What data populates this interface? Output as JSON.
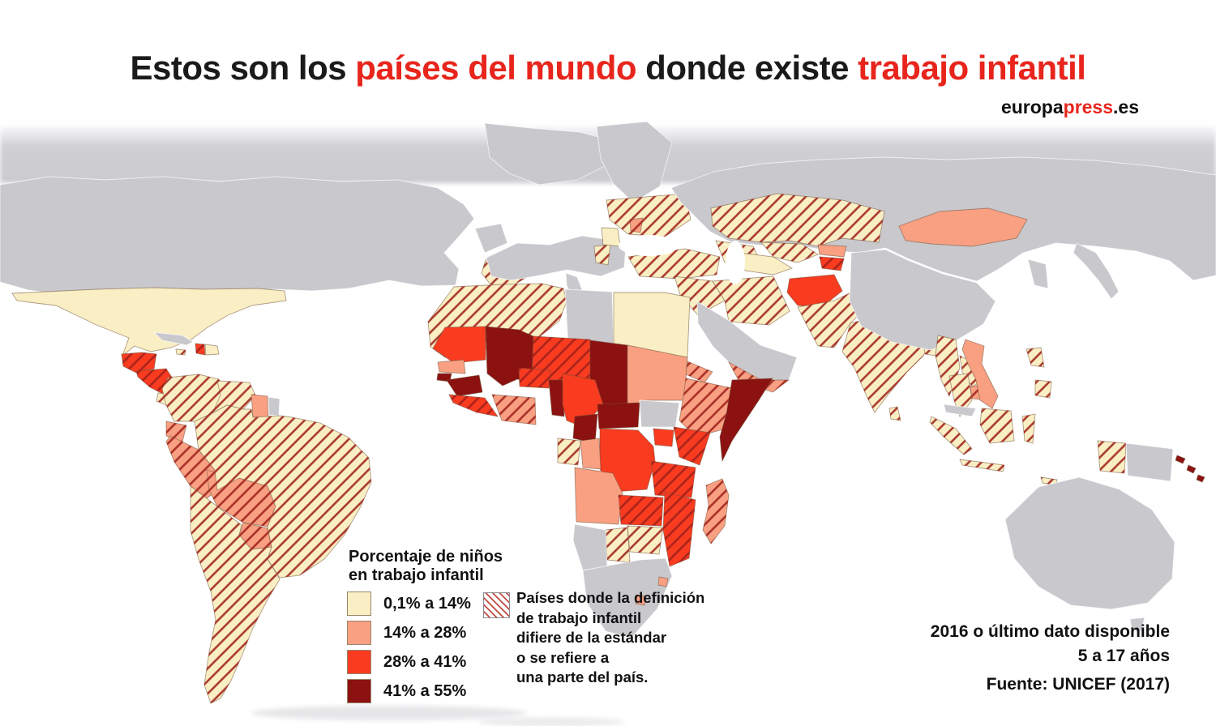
{
  "header": {
    "title_segments": [
      {
        "text": "Estos son los ",
        "color": "#1a1a1a"
      },
      {
        "text": "países del mundo",
        "color": "#e8251c"
      },
      {
        "text": " donde existe ",
        "color": "#1a1a1a"
      },
      {
        "text": "trabajo infantil",
        "color": "#e8251c"
      }
    ],
    "logo": {
      "part1": "europa",
      "part2": "press",
      "part3": ".es",
      "accent_color": "#e8251c"
    }
  },
  "legend": {
    "title": "Porcentaje de niños\nen trabajo infantil",
    "items": [
      {
        "label": "0,1% a 14%",
        "category": "c1",
        "color": "#FAEFC4"
      },
      {
        "label": "14% a 28%",
        "category": "c2",
        "color": "#F9A083"
      },
      {
        "label": "28% a 41%",
        "category": "c3",
        "color": "#F93B20"
      },
      {
        "label": "41% a 55%",
        "category": "c4",
        "color": "#8C1111"
      }
    ],
    "hatch_note": "Países donde la definición\nde trabajo infantil\ndifiere de la estándar\no se refiere a\nuna parte del país."
  },
  "footnotes": {
    "lines": "2016 o último dato disponible\n5 a 17 años",
    "source": "Fuente: UNICEF (2017)"
  },
  "map": {
    "type": "choropleth-world",
    "ocean_color": "#FFFFFF",
    "no_data_color": "#C9C8CD",
    "hatch_line_color": "#9E201A",
    "palette": {
      "c1": "#FAEFC4",
      "c2": "#F9A083",
      "c3": "#F93B20",
      "c4": "#8C1111",
      "nd": "#C9C8CD"
    },
    "regions": [
      {
        "id": "north_america",
        "name": "EE.UU. / Canadá",
        "category": "nd",
        "hatched": false
      },
      {
        "id": "greenland",
        "name": "Groenlandia",
        "category": "nd",
        "hatched": false
      },
      {
        "id": "mexico",
        "name": "México",
        "category": "c1",
        "hatched": false
      },
      {
        "id": "guatemala",
        "name": "Guatemala",
        "category": "c3",
        "hatched": true
      },
      {
        "id": "honduras_nicaragua",
        "name": "Honduras / Nicaragua",
        "category": "c3",
        "hatched": true
      },
      {
        "id": "costa_rica_panama",
        "name": "Costa Rica / Panamá",
        "category": "c1",
        "hatched": true
      },
      {
        "id": "cuba",
        "name": "Cuba",
        "category": "nd",
        "hatched": false
      },
      {
        "id": "jamaica",
        "name": "Jamaica",
        "category": "c1",
        "hatched": true
      },
      {
        "id": "haiti",
        "name": "Haití",
        "category": "c3",
        "hatched": true
      },
      {
        "id": "dominican_republic",
        "name": "Rep. Dominicana",
        "category": "c1",
        "hatched": false
      },
      {
        "id": "colombia",
        "name": "Colombia",
        "category": "c1",
        "hatched": true
      },
      {
        "id": "venezuela",
        "name": "Venezuela",
        "category": "c1",
        "hatched": true
      },
      {
        "id": "guyana",
        "name": "Guyana",
        "category": "c2",
        "hatched": false
      },
      {
        "id": "suriname",
        "name": "Surinam",
        "category": "nd",
        "hatched": false
      },
      {
        "id": "ecuador",
        "name": "Ecuador",
        "category": "c2",
        "hatched": true
      },
      {
        "id": "peru",
        "name": "Perú",
        "category": "c2",
        "hatched": true
      },
      {
        "id": "bolivia",
        "name": "Bolivia",
        "category": "c2",
        "hatched": true
      },
      {
        "id": "paraguay",
        "name": "Paraguay",
        "category": "c2",
        "hatched": true
      },
      {
        "id": "brazil",
        "name": "Brasil",
        "category": "c1",
        "hatched": true
      },
      {
        "id": "argentina_chile",
        "name": "Argentina / Chile / Uruguay",
        "category": "c1",
        "hatched": true
      },
      {
        "id": "spain_portugal",
        "name": "España / Portugal",
        "category": "c1",
        "hatched": true
      },
      {
        "id": "europe_main",
        "name": "Europa occidental",
        "category": "nd",
        "hatched": false
      },
      {
        "id": "scandinavia",
        "name": "Escandinavia",
        "category": "nd",
        "hatched": false
      },
      {
        "id": "uk",
        "name": "Reino Unido",
        "category": "nd",
        "hatched": false
      },
      {
        "id": "italy",
        "name": "Italia",
        "category": "nd",
        "hatched": false
      },
      {
        "id": "albania_macedonia",
        "name": "Albania / Macedonia",
        "category": "c1",
        "hatched": true
      },
      {
        "id": "romania",
        "name": "Rumanía",
        "category": "c1",
        "hatched": false
      },
      {
        "id": "ukraine",
        "name": "Ucrania",
        "category": "c1",
        "hatched": true
      },
      {
        "id": "moldova",
        "name": "Moldavia",
        "category": "c2",
        "hatched": true
      },
      {
        "id": "turkey",
        "name": "Turquía",
        "category": "c1",
        "hatched": true
      },
      {
        "id": "caucasus",
        "name": "Georgia / Azerbaiyán",
        "category": "c1",
        "hatched": true
      },
      {
        "id": "russia",
        "name": "Rusia",
        "category": "nd",
        "hatched": false
      },
      {
        "id": "kazakhstan",
        "name": "Kazajistán",
        "category": "c1",
        "hatched": true
      },
      {
        "id": "uzbekistan",
        "name": "Uzbekistán",
        "category": "c1",
        "hatched": true
      },
      {
        "id": "turkmenistan",
        "name": "Turkmenistán",
        "category": "c1",
        "hatched": false
      },
      {
        "id": "kyrgyzstan",
        "name": "Kirguistán",
        "category": "c2",
        "hatched": false
      },
      {
        "id": "tajikistan",
        "name": "Tayikistán",
        "category": "c3",
        "hatched": true
      },
      {
        "id": "iraq_syria",
        "name": "Irak / Siria",
        "category": "c1",
        "hatched": true
      },
      {
        "id": "iran",
        "name": "Irán",
        "category": "c1",
        "hatched": true
      },
      {
        "id": "arabia",
        "name": "Arabia Saudí",
        "category": "nd",
        "hatched": false
      },
      {
        "id": "yemen",
        "name": "Yemen",
        "category": "c2",
        "hatched": true
      },
      {
        "id": "afghanistan",
        "name": "Afganistán",
        "category": "c3",
        "hatched": false
      },
      {
        "id": "pakistan",
        "name": "Pakistán",
        "category": "c1",
        "hatched": true
      },
      {
        "id": "india",
        "name": "India",
        "category": "c1",
        "hatched": true
      },
      {
        "id": "nepal",
        "name": "Nepal",
        "category": "c3",
        "hatched": false
      },
      {
        "id": "bangladesh",
        "name": "Bangladés",
        "category": "c1",
        "hatched": true
      },
      {
        "id": "sri_lanka",
        "name": "Sri Lanka",
        "category": "c1",
        "hatched": true
      },
      {
        "id": "china",
        "name": "China",
        "category": "nd",
        "hatched": false
      },
      {
        "id": "mongolia",
        "name": "Mongolia",
        "category": "c2",
        "hatched": false
      },
      {
        "id": "korea",
        "name": "Corea",
        "category": "nd",
        "hatched": false
      },
      {
        "id": "japan",
        "name": "Japón",
        "category": "nd",
        "hatched": false
      },
      {
        "id": "myanmar",
        "name": "Myanmar",
        "category": "c1",
        "hatched": true
      },
      {
        "id": "laos",
        "name": "Laos",
        "category": "c1",
        "hatched": true
      },
      {
        "id": "thailand",
        "name": "Tailandia",
        "category": "c1",
        "hatched": true
      },
      {
        "id": "cambodia",
        "name": "Camboya",
        "category": "c2",
        "hatched": true
      },
      {
        "id": "vietnam",
        "name": "Vietnam",
        "category": "c2",
        "hatched": false
      },
      {
        "id": "malaysia",
        "name": "Malasia",
        "category": "nd",
        "hatched": false
      },
      {
        "id": "philippines",
        "name": "Filipinas",
        "category": "c1",
        "hatched": true
      },
      {
        "id": "indonesia_sumatra",
        "name": "Indonesia (Sumatra)",
        "category": "c1",
        "hatched": true
      },
      {
        "id": "indonesia_java",
        "name": "Indonesia (Java)",
        "category": "c1",
        "hatched": true
      },
      {
        "id": "indonesia_borneo",
        "name": "Indonesia (Borneo)",
        "category": "c1",
        "hatched": true
      },
      {
        "id": "indonesia_sulawesi",
        "name": "Indonesia (Célebes)",
        "category": "c1",
        "hatched": true
      },
      {
        "id": "indonesia_papua",
        "name": "Indonesia (Papúa)",
        "category": "c1",
        "hatched": true
      },
      {
        "id": "timor",
        "name": "Timor Oriental",
        "category": "c1",
        "hatched": true
      },
      {
        "id": "png",
        "name": "Papúa Nueva Guinea",
        "category": "nd",
        "hatched": false
      },
      {
        "id": "solomon_islands",
        "name": "Islas Salomón",
        "category": "c4",
        "hatched": false
      },
      {
        "id": "australia",
        "name": "Australia",
        "category": "nd",
        "hatched": false
      },
      {
        "id": "morocco_algeria",
        "name": "Marruecos / Argelia / Túnez",
        "category": "c1",
        "hatched": true
      },
      {
        "id": "libya",
        "name": "Libia",
        "category": "nd",
        "hatched": false
      },
      {
        "id": "egypt",
        "name": "Egipto",
        "category": "c1",
        "hatched": false
      },
      {
        "id": "mauritania",
        "name": "Mauritania",
        "category": "c3",
        "hatched": false
      },
      {
        "id": "mali",
        "name": "Malí",
        "category": "c4",
        "hatched": false
      },
      {
        "id": "niger",
        "name": "Níger",
        "category": "c3",
        "hatched": true
      },
      {
        "id": "chad",
        "name": "Chad",
        "category": "c4",
        "hatched": false
      },
      {
        "id": "sudan",
        "name": "Sudán",
        "category": "c2",
        "hatched": false
      },
      {
        "id": "eritrea_djibouti",
        "name": "Eritrea / Yibuti",
        "category": "c2",
        "hatched": true
      },
      {
        "id": "senegal",
        "name": "Senegal",
        "category": "c2",
        "hatched": false
      },
      {
        "id": "guinea_bissau",
        "name": "Guinea-Bisáu",
        "category": "c4",
        "hatched": false
      },
      {
        "id": "guinea",
        "name": "Guinea",
        "category": "c4",
        "hatched": false
      },
      {
        "id": "sierra_leone_liberia",
        "name": "Sierra Leona / Liberia",
        "category": "c3",
        "hatched": true
      },
      {
        "id": "cote_divoire_ghana",
        "name": "Costa de Marfil / Ghana",
        "category": "c2",
        "hatched": true
      },
      {
        "id": "burkina_faso",
        "name": "Burkina Faso",
        "category": "c3",
        "hatched": true
      },
      {
        "id": "togo_benin",
        "name": "Togo / Benín",
        "category": "c4",
        "hatched": false
      },
      {
        "id": "nigeria",
        "name": "Nigeria",
        "category": "c3",
        "hatched": false
      },
      {
        "id": "cameroon",
        "name": "Camerún",
        "category": "c4",
        "hatched": false
      },
      {
        "id": "car",
        "name": "Rep. Centroafricana",
        "category": "c4",
        "hatched": false
      },
      {
        "id": "south_sudan",
        "name": "Sudán del Sur",
        "category": "nd",
        "hatched": false
      },
      {
        "id": "ethiopia",
        "name": "Etiopía",
        "category": "c2",
        "hatched": true
      },
      {
        "id": "somalia",
        "name": "Somalia",
        "category": "c4",
        "hatched": false
      },
      {
        "id": "kenya",
        "name": "Kenia",
        "category": "c3",
        "hatched": true
      },
      {
        "id": "uganda",
        "name": "Uganda",
        "category": "c3",
        "hatched": false
      },
      {
        "id": "drc",
        "name": "Rep. Dem. del Congo",
        "category": "c3",
        "hatched": false
      },
      {
        "id": "gabon_eqguinea",
        "name": "Gabón / Guinea Ecuatorial",
        "category": "c1",
        "hatched": true
      },
      {
        "id": "congo",
        "name": "Congo",
        "category": "c2",
        "hatched": false
      },
      {
        "id": "tanzania",
        "name": "Tanzania",
        "category": "c3",
        "hatched": true
      },
      {
        "id": "angola",
        "name": "Angola",
        "category": "c2",
        "hatched": false
      },
      {
        "id": "zambia",
        "name": "Zambia",
        "category": "c3",
        "hatched": true
      },
      {
        "id": "mozambique_malawi",
        "name": "Mozambique / Malaui",
        "category": "c3",
        "hatched": true
      },
      {
        "id": "zimbabwe",
        "name": "Zimbabue",
        "category": "c1",
        "hatched": true
      },
      {
        "id": "botswana",
        "name": "Botsuana",
        "category": "c1",
        "hatched": true
      },
      {
        "id": "namibia",
        "name": "Namibia",
        "category": "nd",
        "hatched": false
      },
      {
        "id": "south_africa",
        "name": "Sudáfrica",
        "category": "nd",
        "hatched": false
      },
      {
        "id": "lesotho",
        "name": "Lesoto",
        "category": "c2",
        "hatched": false
      },
      {
        "id": "swaziland",
        "name": "Suazilandia",
        "category": "c2",
        "hatched": false
      },
      {
        "id": "madagascar",
        "name": "Madagascar",
        "category": "c2",
        "hatched": true
      }
    ]
  }
}
